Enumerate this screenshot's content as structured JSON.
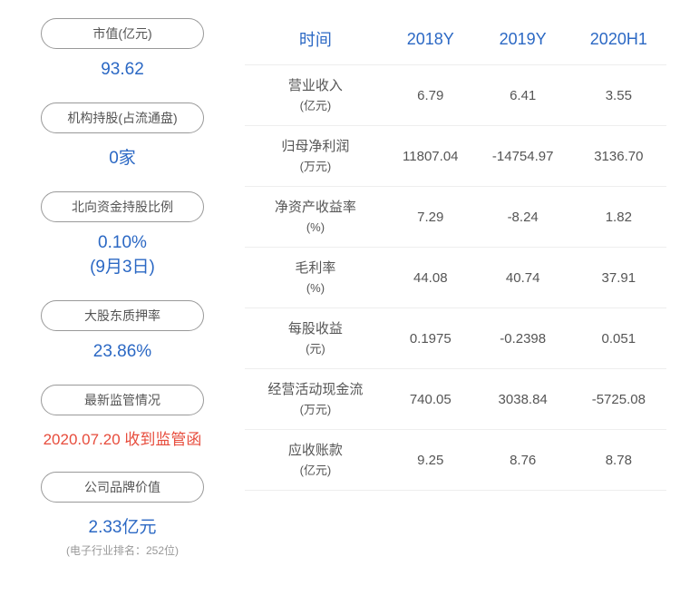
{
  "left_metrics": [
    {
      "label": "市值(亿元)",
      "value": "93.62",
      "color": "blue"
    },
    {
      "label": "机构持股(占流通盘)",
      "value": "0家",
      "color": "blue"
    },
    {
      "label": "北向资金持股比例",
      "value": "0.10%",
      "note": "(9月3日)",
      "color": "blue"
    },
    {
      "label": "大股东质押率",
      "value": "23.86%",
      "color": "blue"
    },
    {
      "label": "最新监管情况",
      "value": "2020.07.20 收到监管函",
      "color": "red"
    },
    {
      "label": "公司品牌价值",
      "value": "2.33亿元",
      "note": "(电子行业排名：252位)",
      "color": "blue"
    }
  ],
  "table": {
    "headers": [
      "时间",
      "2018Y",
      "2019Y",
      "2020H1"
    ],
    "rows": [
      {
        "label": "营业收入",
        "unit": "(亿元)",
        "values": [
          "6.79",
          "6.41",
          "3.55"
        ]
      },
      {
        "label": "归母净利润",
        "unit": "(万元)",
        "values": [
          "11807.04",
          "-14754.97",
          "3136.70"
        ]
      },
      {
        "label": "净资产收益率",
        "unit": "(%)",
        "values": [
          "7.29",
          "-8.24",
          "1.82"
        ]
      },
      {
        "label": "毛利率",
        "unit": "(%)",
        "values": [
          "44.08",
          "40.74",
          "37.91"
        ]
      },
      {
        "label": "每股收益",
        "unit": "(元)",
        "values": [
          "0.1975",
          "-0.2398",
          "0.051"
        ]
      },
      {
        "label": "经营活动现金流",
        "unit": "(万元)",
        "values": [
          "740.05",
          "3038.84",
          "-5725.08"
        ]
      },
      {
        "label": "应收账款",
        "unit": "(亿元)",
        "values": [
          "9.25",
          "8.76",
          "8.78"
        ]
      }
    ]
  },
  "styles": {
    "accent_color": "#2b68c4",
    "alert_color": "#e74c3c",
    "text_color": "#555",
    "border_color": "#eee",
    "background": "#ffffff"
  }
}
